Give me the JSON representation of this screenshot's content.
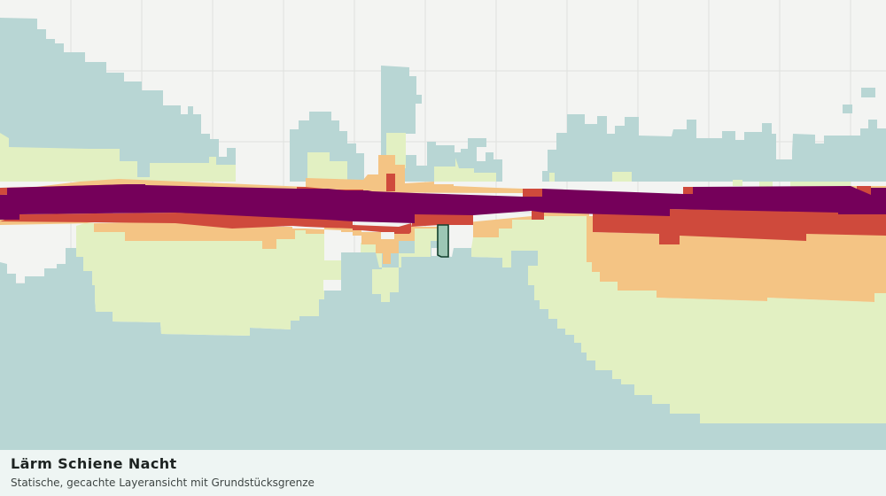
{
  "map": {
    "title": "Lärm Schiene Nacht",
    "subtitle": "Statische, gecachte Layeransicht mit Grundstücksgrenze",
    "colors": {
      "background": "#f3f4f2",
      "grid": "#dfe1de",
      "zone_low": "#b8d6d4",
      "zone_light": "#e2f0c2",
      "zone_medium": "#f4c484",
      "zone_high": "#cf4a3c",
      "zone_highest": "#75005a",
      "parcel_fill": "#9cc6b4",
      "parcel_stroke": "#123f2c"
    }
  }
}
